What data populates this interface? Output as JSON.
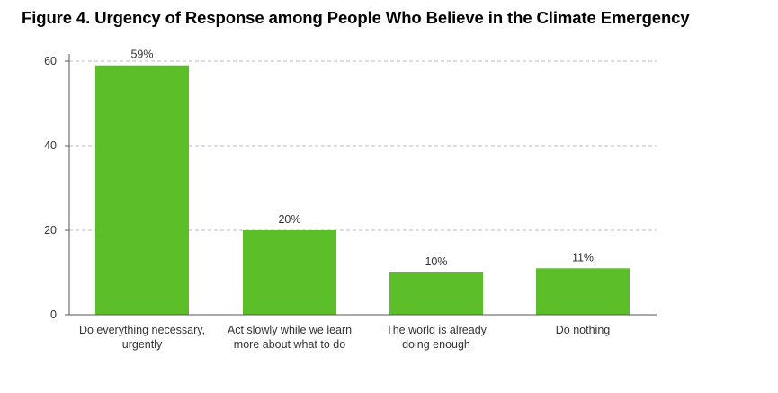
{
  "title": "Figure 4. Urgency of Response among People Who Believe in the Climate Emergency",
  "chart_data": {
    "type": "bar",
    "categories": [
      [
        "Do everything necessary,",
        "urgently"
      ],
      [
        "Act slowly while we learn",
        "more about what to do"
      ],
      [
        "The world is already",
        "doing enough"
      ],
      [
        "Do nothing"
      ]
    ],
    "values": [
      59,
      20,
      10,
      11
    ],
    "data_labels": [
      "59%",
      "20%",
      "10%",
      "11%"
    ],
    "yticks": [
      0,
      20,
      40,
      60
    ],
    "ylim": [
      0,
      60
    ],
    "grid": true,
    "bar_color": "#5cbf2a",
    "xlabel": "",
    "ylabel": ""
  }
}
